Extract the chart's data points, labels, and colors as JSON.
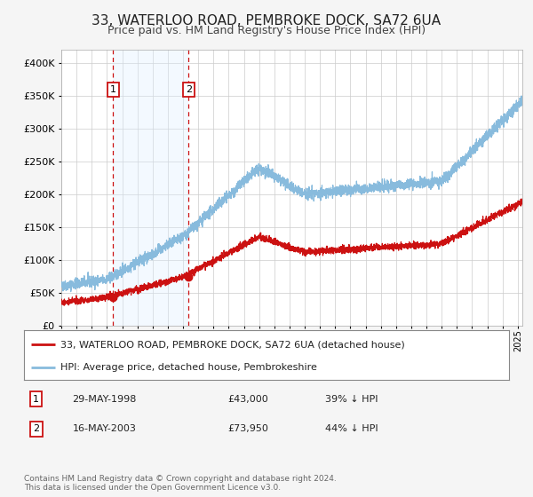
{
  "title": "33, WATERLOO ROAD, PEMBROKE DOCK, SA72 6UA",
  "subtitle": "Price paid vs. HM Land Registry's House Price Index (HPI)",
  "title_fontsize": 11,
  "subtitle_fontsize": 9,
  "background_color": "#f5f5f5",
  "plot_bg_color": "#ffffff",
  "grid_color": "#cccccc",
  "hpi_line_color": "#88bbdd",
  "price_color": "#cc1111",
  "shade_color": "#ddeeff",
  "sale1_date_num": 1998.41,
  "sale1_price": 43000,
  "sale2_date_num": 2003.37,
  "sale2_price": 73950,
  "legend_label_price": "33, WATERLOO ROAD, PEMBROKE DOCK, SA72 6UA (detached house)",
  "legend_label_hpi": "HPI: Average price, detached house, Pembrokeshire",
  "table_rows": [
    {
      "num": 1,
      "date": "29-MAY-1998",
      "price": "£43,000",
      "hpi": "39% ↓ HPI"
    },
    {
      "num": 2,
      "date": "16-MAY-2003",
      "price": "£73,950",
      "hpi": "44% ↓ HPI"
    }
  ],
  "footer": "Contains HM Land Registry data © Crown copyright and database right 2024.\nThis data is licensed under the Open Government Licence v3.0.",
  "ylim": [
    0,
    420000
  ],
  "yticks": [
    0,
    50000,
    100000,
    150000,
    200000,
    250000,
    300000,
    350000,
    400000
  ],
  "xlim_start": 1995.0,
  "xlim_end": 2025.3
}
